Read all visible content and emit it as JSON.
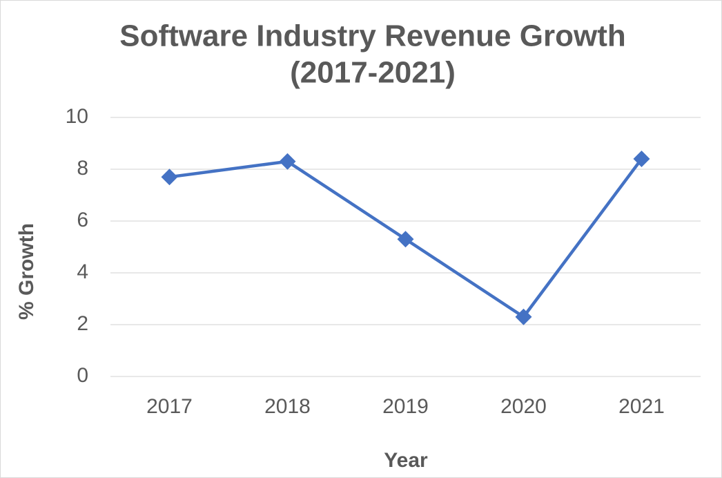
{
  "chart_data": {
    "type": "line",
    "title": [
      "Software Industry Revenue Growth",
      "(2017-2021)"
    ],
    "x_label": "Year",
    "y_label": "% Growth",
    "categories": [
      "2017",
      "2018",
      "2019",
      "2020",
      "2021"
    ],
    "series": [
      {
        "name": "% Growth",
        "color": "#4472c4",
        "values": [
          7.7,
          8.3,
          5.3,
          2.3,
          8.4
        ]
      }
    ],
    "ylim": [
      0,
      10
    ],
    "yticks": [
      0,
      2,
      4,
      6,
      8,
      10
    ],
    "grid": true
  }
}
